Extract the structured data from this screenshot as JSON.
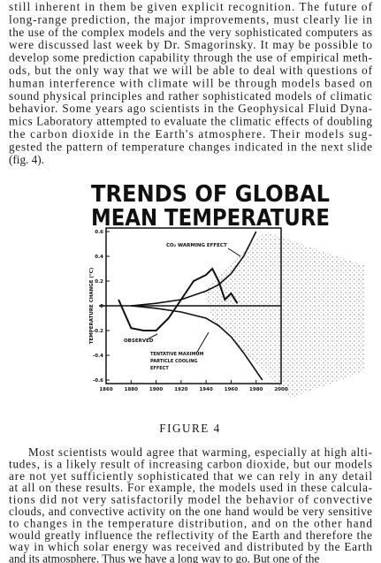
{
  "paragraph_1": [
    "still inherent in them be given explicit recognition. The future of",
    "long-range prediction, the major improvements, must clearly lie in",
    "the use of the complex models and the very sophisticated computers as",
    "were discussed last week by Dr. Smagorinsky. It may be possible to",
    "develop some prediction capability through the use of empirical meth-",
    "ods, but the only way that we will be able to deal with questions of",
    "human interference with climate will be through models based on",
    "sound physical principles and rather sophisticated models of climatic",
    "behavior. Some years ago scientists in the Geophysical Fluid Dyna-",
    "mics Laboratory attempted to evaluate the climatic effects of doubling",
    "the carbon dioxide in the Earth's atmosphere. Their models sug-",
    "gested the pattern of temperature changes indicated in the next slide",
    "(fig. 4)."
  ],
  "chart_data": {
    "type": "line",
    "title": [
      "TRENDS OF GLOBAL",
      "MEAN TEMPERATURE"
    ],
    "y_label": "TEMPERATURE CHANGE (°C)",
    "xlim": [
      1860,
      2000
    ],
    "xticks": [
      1860,
      1880,
      1900,
      1920,
      1940,
      1960,
      1980,
      2000
    ],
    "ylim": [
      -0.6,
      0.6
    ],
    "yticks": [
      0.6,
      0.4,
      0.2,
      0,
      -0.2,
      -0.4,
      -0.6
    ],
    "series": [
      {
        "name": "CO₂ WARMING EFFECT",
        "color": "#111111",
        "x": [
          1880,
          1900,
          1920,
          1940,
          1950,
          1960,
          1970,
          1980
        ],
        "values": [
          0,
          0.02,
          0.05,
          0.12,
          0.17,
          0.26,
          0.4,
          0.6
        ]
      },
      {
        "name": "OBSERVED",
        "color": "#111111",
        "x": [
          1870,
          1880,
          1890,
          1900,
          1910,
          1920,
          1930,
          1940,
          1945,
          1950,
          1955,
          1960,
          1965
        ],
        "values": [
          0.05,
          -0.18,
          -0.2,
          -0.2,
          -0.1,
          0.05,
          0.2,
          0.25,
          0.3,
          0.2,
          0.05,
          0.1,
          0.02
        ]
      },
      {
        "name": [
          "TENTATIVE MAXIMUM",
          "PARTICLE COOLING",
          "EFFECT"
        ],
        "color": "#111111",
        "x": [
          1880,
          1900,
          1920,
          1940,
          1950,
          1960,
          1970,
          1985
        ],
        "values": [
          0,
          -0.02,
          -0.05,
          -0.1,
          -0.16,
          -0.25,
          -0.38,
          -0.6
        ]
      }
    ]
  },
  "caption": "FIGURE 4",
  "paragraph_2": [
    "Most scientists would agree that warming, especially at high alti-",
    "tudes, is a likely result of increasing carbon dioxide, but our models",
    "are not yet sufficiently sophisticated that we can rely in any detail",
    "at all on these results. For example, the models used in these calcula-",
    "tions did not very satisfactorily model the behavior of convective",
    "clouds, and convective activity on the one hand would be very sensitive",
    "to changes in the temperature distribution, and on the other hand",
    "would greatly influence the reflectivity of the Earth and therefore the",
    "way in which solar energy was received and distributed by the Earth",
    "and its atmosphere. Thus we have a long way to go. But one of the"
  ]
}
